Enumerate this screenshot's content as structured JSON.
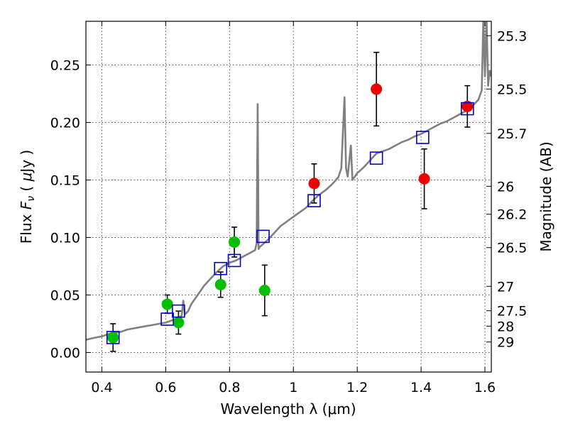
{
  "chart_data": {
    "type": "scatter",
    "title": "",
    "xlabel": "Wavelength  λ (μm)",
    "ylabel": "Flux  F_ν  ( μJy )",
    "ylabel_parts": {
      "pre": "Flux  ",
      "italic": "F",
      "sub": "ν",
      "mid": "  ( ",
      "mu": "μ",
      "post": "Jy )"
    },
    "y2label": "Magnitude (AB)",
    "xlim": [
      0.35,
      1.62
    ],
    "ylim": [
      -0.017,
      0.288
    ],
    "grid": true,
    "x_ticks": [
      0.4,
      0.6,
      0.8,
      1.0,
      1.2,
      1.4,
      1.6
    ],
    "x_tick_labels": [
      "0.4",
      "0.6",
      "0.8",
      "1",
      "1.2",
      "1.4",
      "1.6"
    ],
    "y_ticks": [
      0.0,
      0.05,
      0.1,
      0.15,
      0.2,
      0.25
    ],
    "y_tick_labels": [
      "0.00",
      "0.05",
      "0.10",
      "0.15",
      "0.20",
      "0.25"
    ],
    "y2_ticks": [
      {
        "label": "25.3",
        "mag": 25.3
      },
      {
        "label": "25.5",
        "mag": 25.5
      },
      {
        "label": "25.7",
        "mag": 25.7
      },
      {
        "label": "26",
        "mag": 26.0
      },
      {
        "label": "26.2",
        "mag": 26.2
      },
      {
        "label": "26.5",
        "mag": 26.5
      },
      {
        "label": "27",
        "mag": 27.0
      },
      {
        "label": "27.5",
        "mag": 27.5
      },
      {
        "label": "28",
        "mag": 28.0
      },
      {
        "label": "29",
        "mag": 29.0
      }
    ],
    "colors": {
      "spectrum": "#808080",
      "green": "#00c000",
      "red": "#ee0000",
      "model": "#0000cc",
      "errorbar": "#000000"
    },
    "series": [
      {
        "marker": "spectrum-line",
        "x": [
          0.35,
          0.38,
          0.4,
          0.42,
          0.44,
          0.46,
          0.48,
          0.5,
          0.52,
          0.54,
          0.56,
          0.58,
          0.6,
          0.62,
          0.64,
          0.65,
          0.655,
          0.66,
          0.67,
          0.68,
          0.7,
          0.72,
          0.74,
          0.76,
          0.78,
          0.8,
          0.82,
          0.84,
          0.86,
          0.88,
          0.885,
          0.888,
          0.891,
          0.895,
          0.9,
          0.92,
          0.94,
          0.96,
          0.98,
          1.0,
          1.02,
          1.04,
          1.06,
          1.08,
          1.1,
          1.12,
          1.14,
          1.15,
          1.16,
          1.165,
          1.17,
          1.18,
          1.185,
          1.19,
          1.2,
          1.22,
          1.24,
          1.26,
          1.28,
          1.3,
          1.32,
          1.34,
          1.36,
          1.38,
          1.4,
          1.42,
          1.44,
          1.46,
          1.48,
          1.5,
          1.52,
          1.54,
          1.56,
          1.58,
          1.59,
          1.595,
          1.6,
          1.605,
          1.61,
          1.615,
          1.62
        ],
        "y": [
          0.011,
          0.013,
          0.014,
          0.016,
          0.017,
          0.018,
          0.02,
          0.021,
          0.022,
          0.023,
          0.024,
          0.025,
          0.026,
          0.028,
          0.03,
          0.032,
          0.045,
          0.033,
          0.036,
          0.042,
          0.05,
          0.058,
          0.064,
          0.07,
          0.075,
          0.078,
          0.08,
          0.083,
          0.086,
          0.089,
          0.095,
          0.216,
          0.09,
          0.092,
          0.093,
          0.098,
          0.104,
          0.11,
          0.114,
          0.118,
          0.122,
          0.126,
          0.132,
          0.137,
          0.141,
          0.146,
          0.152,
          0.16,
          0.222,
          0.16,
          0.153,
          0.18,
          0.15,
          0.152,
          0.156,
          0.161,
          0.167,
          0.173,
          0.175,
          0.177,
          0.18,
          0.183,
          0.185,
          0.188,
          0.19,
          0.193,
          0.196,
          0.199,
          0.201,
          0.204,
          0.207,
          0.21,
          0.214,
          0.22,
          0.228,
          0.29,
          0.24,
          0.29,
          0.232,
          0.245,
          0.24
        ]
      },
      {
        "name": "",
        "marker": "green-circle",
        "x": [
          0.435,
          0.605,
          0.64,
          0.772,
          0.815,
          0.91
        ],
        "y": [
          0.013,
          0.042,
          0.026,
          0.059,
          0.096,
          0.054
        ],
        "yerr": [
          0.012,
          0.008,
          0.01,
          0.011,
          0.013,
          0.022
        ]
      },
      {
        "name": "",
        "marker": "red-circle",
        "x": [
          1.065,
          1.26,
          1.41,
          1.545
        ],
        "y": [
          0.147,
          0.229,
          0.151,
          0.214
        ],
        "yerr": [
          0.017,
          0.032,
          0.026,
          0.018
        ]
      },
      {
        "name": "",
        "marker": "blue-open-square",
        "x": [
          0.435,
          0.605,
          0.64,
          0.772,
          0.815,
          0.905,
          1.065,
          1.26,
          1.405,
          1.545
        ],
        "y": [
          0.013,
          0.029,
          0.036,
          0.073,
          0.08,
          0.101,
          0.132,
          0.169,
          0.187,
          0.212
        ]
      }
    ]
  }
}
